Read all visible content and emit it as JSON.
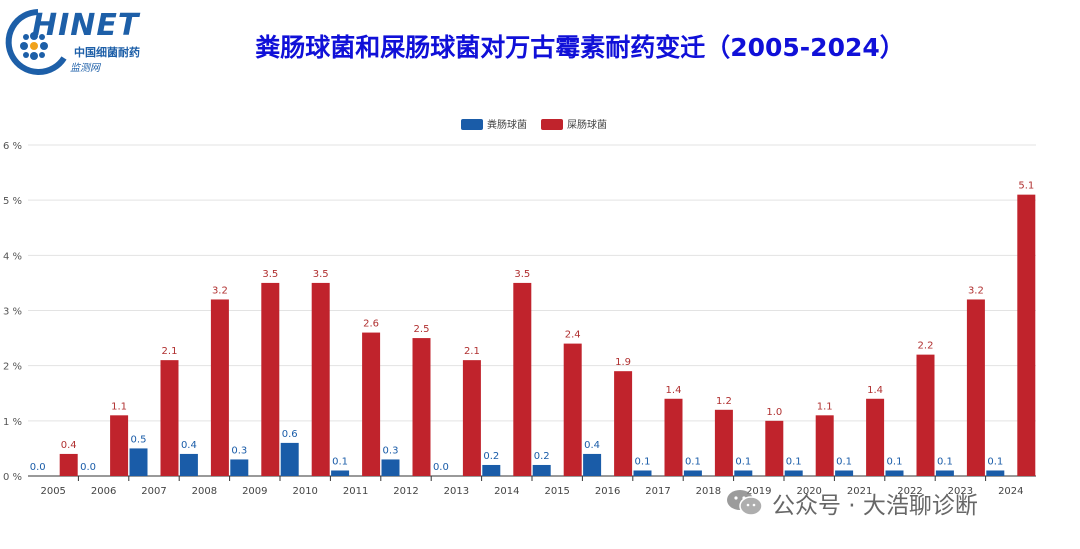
{
  "header": {
    "logo_word": "HINET",
    "logo_sub1": "中国细菌耐药",
    "logo_sub2": "监测网",
    "title": "粪肠球菌和屎肠球菌对万古霉素耐药变迁（2005-2024）"
  },
  "watermark": {
    "text": "公众号 · 大浩聊诊断"
  },
  "chart_data": {
    "type": "bar",
    "categories": [
      "2005",
      "2006",
      "2007",
      "2008",
      "2009",
      "2010",
      "2011",
      "2012",
      "2013",
      "2014",
      "2015",
      "2016",
      "2017",
      "2018",
      "2019",
      "2020",
      "2021",
      "2022",
      "2023",
      "2024"
    ],
    "series": [
      {
        "name": "粪肠球菌",
        "color": "#1a5ca8",
        "label_color": "#1a5ca8",
        "values": [
          0.0,
          0.0,
          0.5,
          0.4,
          0.3,
          0.6,
          0.1,
          0.3,
          0.0,
          0.2,
          0.2,
          0.4,
          0.1,
          0.1,
          0.1,
          0.1,
          0.1,
          0.1,
          0.1,
          0.1
        ]
      },
      {
        "name": "屎肠球菌",
        "color": "#c0232c",
        "label_color": "#b03030",
        "values": [
          0.4,
          1.1,
          2.1,
          3.2,
          3.5,
          3.5,
          2.6,
          2.5,
          2.1,
          3.5,
          2.4,
          1.9,
          1.4,
          1.2,
          1.0,
          1.1,
          1.4,
          2.2,
          3.2,
          5.1
        ]
      }
    ],
    "y_ticks": [
      "0 %",
      "1 %",
      "2 %",
      "3 %",
      "4 %",
      "5 %",
      "6 %"
    ],
    "ylim": [
      0,
      6
    ],
    "grid": true,
    "legend_position": "top-center"
  }
}
